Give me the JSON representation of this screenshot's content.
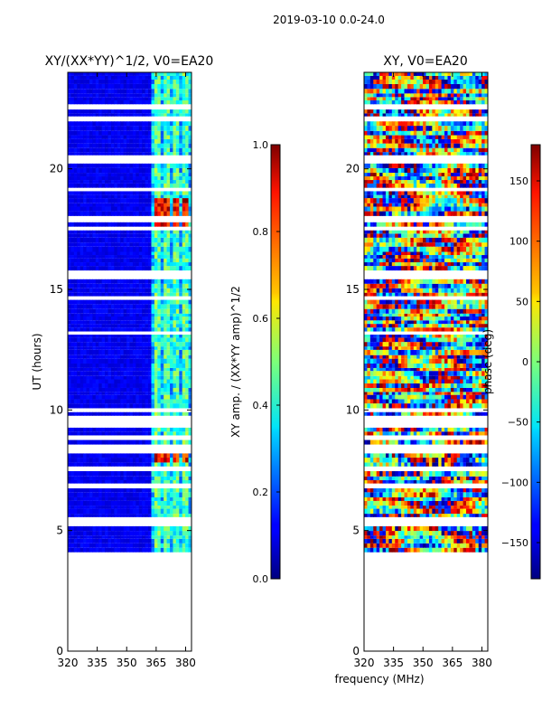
{
  "chart_data": {
    "type": "heatmap",
    "suptitle": "2019-03-10 0.0-24.0",
    "shared_xlabel": "frequency (MHz)",
    "panels": [
      {
        "id": "amp",
        "title": "XY/(XX*YY)^1/2, V0=EA20",
        "ylabel": "UT (hours)",
        "xlim": [
          320,
          383
        ],
        "ylim": [
          0,
          24
        ],
        "xticks": [
          320,
          335,
          350,
          365,
          380
        ],
        "yticks": [
          0,
          5,
          10,
          15,
          20
        ],
        "colorbar": {
          "label": "XY amp. / (XX*YY amp)^1/2",
          "range": [
            0.0,
            1.0
          ],
          "ticks": [
            "0.0",
            "0.2",
            "0.4",
            "0.6",
            "0.8",
            "1.0"
          ],
          "tick_values": [
            0.0,
            0.2,
            0.4,
            0.6,
            0.8,
            1.0
          ]
        }
      },
      {
        "id": "phase",
        "title": "XY, V0=EA20",
        "ylabel": "",
        "xlim": [
          320,
          383
        ],
        "ylim": [
          0,
          24
        ],
        "xticks": [
          320,
          335,
          350,
          365,
          380
        ],
        "yticks": [
          0,
          5,
          10,
          15,
          20
        ],
        "colorbar": {
          "label": "phase (deg)",
          "range": [
            -180,
            180
          ],
          "ticks": [
            "−150",
            "−100",
            "−50",
            "0",
            "50",
            "100",
            "150"
          ],
          "tick_values": [
            -150,
            -100,
            -50,
            0,
            50,
            100,
            150
          ]
        }
      }
    ],
    "data_time_range_hours": [
      4.1,
      24.0
    ],
    "amp_hot_bands_hours": [
      [
        7.8,
        8.1
      ],
      [
        17.4,
        18.7
      ]
    ],
    "amp_hot_freq_columns_mhz": [
      366,
      370,
      375,
      380
    ]
  }
}
